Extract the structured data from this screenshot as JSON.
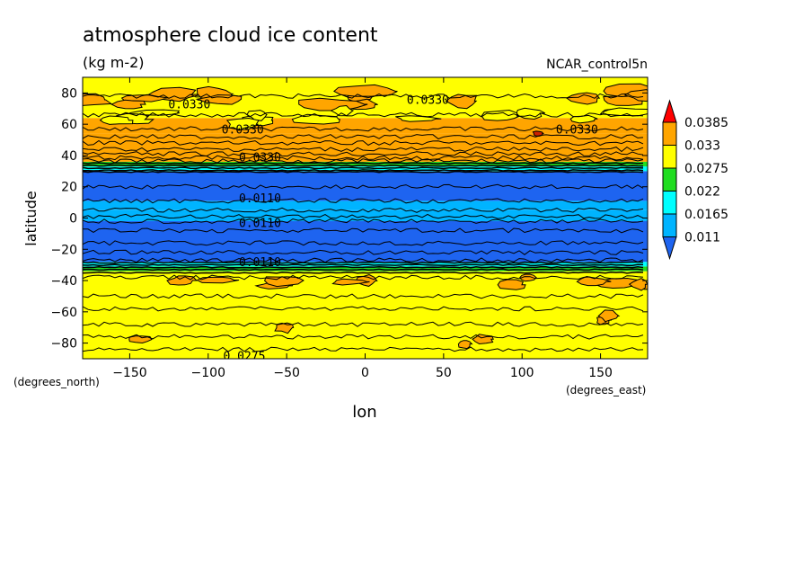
{
  "chart_data": {
    "type": "heatmap",
    "title": "atmosphere cloud ice content",
    "subtitle": "(kg m-2)",
    "source_label": "NCAR_control5n",
    "xlabel": "lon",
    "ylabel": "latitude",
    "x_units": "(degrees_east)",
    "y_units": "(degrees_north)",
    "xlim": [
      -180,
      180
    ],
    "ylim": [
      -90,
      90
    ],
    "x_ticks": [
      -150,
      -100,
      -50,
      0,
      50,
      100,
      150
    ],
    "x_tick_labels": [
      "−150",
      "−100",
      "−50",
      "0",
      "50",
      "100",
      "150"
    ],
    "y_ticks": [
      80,
      60,
      40,
      20,
      0,
      -20,
      -40,
      -60,
      -80
    ],
    "y_tick_labels": [
      "80",
      "60",
      "40",
      "20",
      "0",
      "−20",
      "−40",
      "−60",
      "−80"
    ],
    "colorbar": {
      "levels": [
        0.011,
        0.0165,
        0.022,
        0.0275,
        0.033,
        0.0385
      ],
      "labels": [
        "0.011",
        "0.0165",
        "0.022",
        "0.0275",
        "0.033",
        "0.0385"
      ],
      "colors": [
        "#1e64f0",
        "#00b4ff",
        "#00ffff",
        "#20dd20",
        "#ffff00",
        "#ffa500",
        "#ff0000"
      ]
    },
    "latitude_bands": [
      {
        "lat": [
          -90,
          -34
        ],
        "value": 0.03
      },
      {
        "lat": [
          -34,
          -31
        ],
        "value": 0.024
      },
      {
        "lat": [
          -31,
          -28
        ],
        "value": 0.018
      },
      {
        "lat": [
          -28,
          -2
        ],
        "value": 0.009
      },
      {
        "lat": [
          -2,
          5
        ],
        "value": 0.013
      },
      {
        "lat": [
          5,
          11
        ],
        "value": 0.012
      },
      {
        "lat": [
          11,
          30
        ],
        "value": 0.009
      },
      {
        "lat": [
          30,
          33
        ],
        "value": 0.018
      },
      {
        "lat": [
          33,
          36
        ],
        "value": 0.024
      },
      {
        "lat": [
          36,
          54
        ],
        "value": 0.034
      },
      {
        "lat": [
          54,
          64
        ],
        "value": 0.033
      },
      {
        "lat": [
          64,
          80
        ],
        "value": 0.031
      },
      {
        "lat": [
          80,
          90
        ],
        "value": 0.03
      }
    ],
    "contour_labels": [
      {
        "text": "0.0330",
        "lon": -112,
        "lat": 73
      },
      {
        "text": "0.0330",
        "lon": 40,
        "lat": 76
      },
      {
        "text": "0.0330",
        "lon": -78,
        "lat": 57
      },
      {
        "text": "0.0330",
        "lon": 135,
        "lat": 57
      },
      {
        "text": "0.0330",
        "lon": -67,
        "lat": 39
      },
      {
        "text": "0.0110",
        "lon": -67,
        "lat": 13
      },
      {
        "text": "0.0110",
        "lon": -67,
        "lat": -3
      },
      {
        "text": "0.0110",
        "lon": -67,
        "lat": -28
      },
      {
        "text": "0.0275",
        "lon": -77,
        "lat": -88
      }
    ]
  }
}
